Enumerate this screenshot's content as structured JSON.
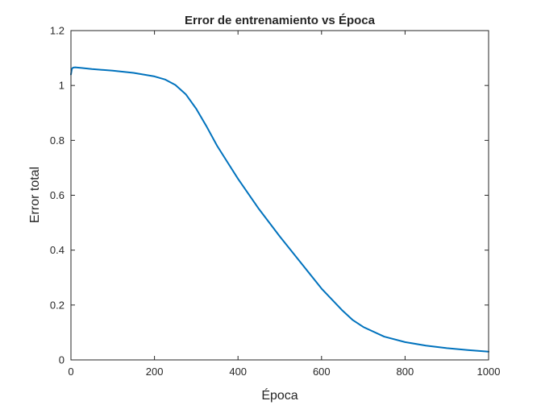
{
  "chart_data": {
    "type": "line",
    "title": "Error de entrenamiento vs Época",
    "xlabel": "Época",
    "ylabel": "Error total",
    "xlim": [
      0,
      1000
    ],
    "ylim": [
      0,
      1.2
    ],
    "xticks": [
      0,
      200,
      400,
      600,
      800,
      1000
    ],
    "xtick_labels": [
      "0",
      "200",
      "400",
      "600",
      "800",
      "1000"
    ],
    "yticks": [
      0,
      0.2,
      0.4,
      0.6,
      0.8,
      1.0,
      1.2
    ],
    "ytick_labels": [
      "0",
      "0.2",
      "0.4",
      "0.6",
      "0.8",
      "1",
      "1.2"
    ],
    "grid": false,
    "legend": "none",
    "series": [
      {
        "color": "#0072BD",
        "x": [
          0,
          2,
          5,
          10,
          25,
          50,
          100,
          150,
          200,
          225,
          250,
          275,
          300,
          325,
          350,
          375,
          400,
          450,
          500,
          550,
          600,
          625,
          650,
          675,
          700,
          750,
          800,
          850,
          900,
          950,
          1000
        ],
        "y": [
          1.04,
          1.06,
          1.065,
          1.066,
          1.064,
          1.06,
          1.054,
          1.046,
          1.033,
          1.022,
          1.002,
          0.968,
          0.915,
          0.85,
          0.78,
          0.72,
          0.66,
          0.55,
          0.45,
          0.355,
          0.26,
          0.22,
          0.18,
          0.145,
          0.12,
          0.085,
          0.065,
          0.052,
          0.043,
          0.036,
          0.03
        ]
      }
    ]
  }
}
